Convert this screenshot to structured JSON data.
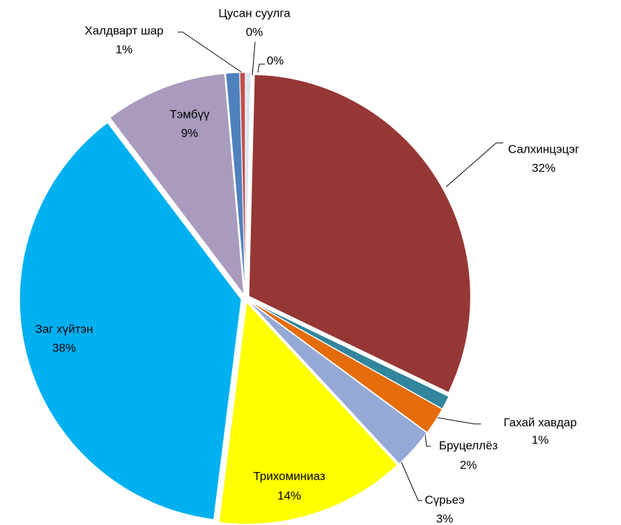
{
  "chart_data": {
    "type": "pie",
    "categories": [
      null,
      "Салхинцэцэг",
      "Гахай хавдар",
      "Бруцеллёз",
      "Сүрьеэ",
      "Трихоминиаз",
      "Заг хүйтэн",
      "Тэмбүү",
      "Халдварт шар",
      "Цусан суулга"
    ],
    "values": [
      0.4,
      32,
      1,
      2,
      3,
      14,
      38,
      9,
      1,
      0.4
    ],
    "value_labels": [
      "0%",
      "32%",
      "1%",
      "2%",
      "3%",
      "14%",
      "38%",
      "9%",
      "1%",
      "0%"
    ],
    "colors": [
      "#dbe5f1",
      "#953735",
      "#31859c",
      "#e46c0a",
      "#95a9d6",
      "#ffff00",
      "#00b0f0",
      "#a99bbd",
      "#4f81bd",
      "#c0504d"
    ]
  }
}
